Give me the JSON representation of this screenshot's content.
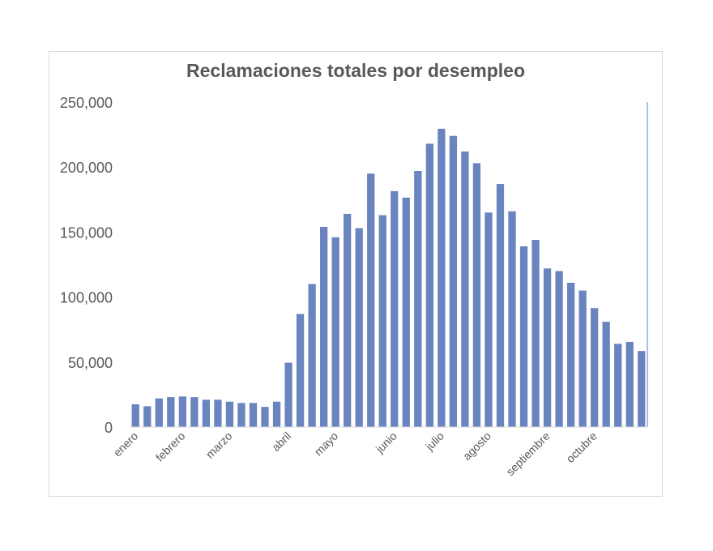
{
  "chart_data": {
    "type": "bar",
    "title": "Reclamaciones totales por desempleo",
    "xlabel": "",
    "ylabel": "",
    "ylim": [
      0,
      250000
    ],
    "yticks": [
      0,
      50000,
      100000,
      150000,
      200000,
      250000
    ],
    "ytick_labels": [
      "0",
      "50,000",
      "100,000",
      "150,000",
      "200,000",
      "250,000"
    ],
    "month_labels": [
      {
        "label": "enero",
        "bar_index": 0
      },
      {
        "label": "febrero",
        "bar_index": 4
      },
      {
        "label": "marzo",
        "bar_index": 8
      },
      {
        "label": "abril",
        "bar_index": 13
      },
      {
        "label": "mayo",
        "bar_index": 17
      },
      {
        "label": "junio",
        "bar_index": 22
      },
      {
        "label": "julio",
        "bar_index": 26
      },
      {
        "label": "agosto",
        "bar_index": 30
      },
      {
        "label": "septiembre",
        "bar_index": 35
      },
      {
        "label": "octubre",
        "bar_index": 39
      }
    ],
    "values": [
      17500,
      16000,
      22000,
      23000,
      23500,
      23000,
      21000,
      21000,
      19500,
      18500,
      18500,
      15500,
      19500,
      49500,
      87000,
      110000,
      154000,
      146000,
      164000,
      153000,
      195000,
      163000,
      181500,
      176500,
      197000,
      218000,
      229500,
      224000,
      212000,
      203000,
      165000,
      187000,
      166000,
      139000,
      144000,
      122000,
      120000,
      111000,
      105000,
      91500,
      81000,
      64000,
      65500,
      58500
    ],
    "grid": false,
    "legend": "none",
    "bar_color": "#6a84c0",
    "axis_color": "#8ea9db"
  }
}
